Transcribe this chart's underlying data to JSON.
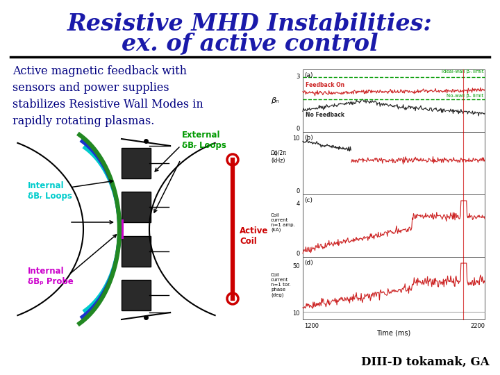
{
  "title_line1": "Resistive MHD Instabilities:",
  "title_line2": "ex. of active control",
  "title_color": "#1a1aaa",
  "title_fontsize": 24,
  "body_text": "Active magnetic feedback with\nsensors and power supplies\nstabilizes Resistive Wall Modes in\nrapidly rotating plasmas.",
  "body_color": "#000080",
  "body_fontsize": 11.5,
  "footer_text": "DIII-D tokamak, GA",
  "footer_color": "#000000",
  "footer_fontsize": 12,
  "background_color": "#ffffff",
  "separator_color": "#000000",
  "label_internal_br": "Internal\nδBᵣ Loops",
  "label_internal_bp": "Internal\nδBₚ Probe",
  "label_external_br": "External\nδBᵣ Loops",
  "label_active_coil": "Active\nCoil",
  "label_color_cyan": "#00cccc",
  "label_color_magenta": "#cc00cc",
  "label_color_green": "#009900",
  "label_color_red": "#cc0000"
}
